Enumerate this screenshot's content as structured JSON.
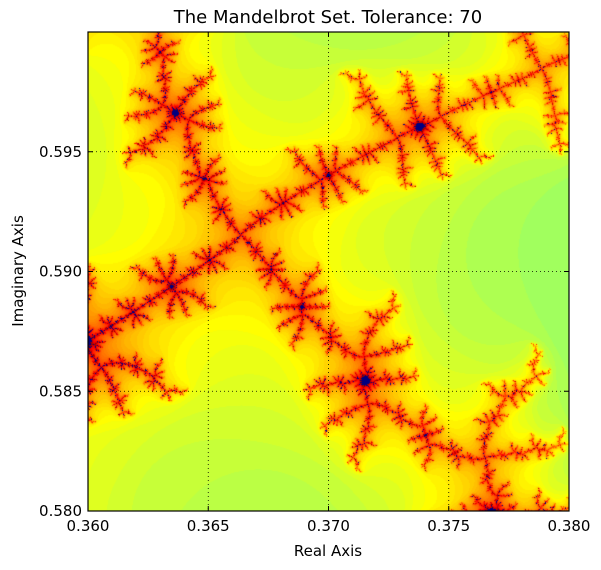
{
  "chart_data": {
    "type": "heatmap",
    "title": "The Mandelbrot Set. Tolerance: 70",
    "xlabel": "Real Axis",
    "ylabel": "Imaginary Axis",
    "xlim": [
      0.36,
      0.38
    ],
    "ylim": [
      0.58,
      0.6
    ],
    "x_ticks": [
      0.36,
      0.365,
      0.37,
      0.375,
      0.38
    ],
    "x_tick_labels": [
      "0.360",
      "0.365",
      "0.370",
      "0.375",
      "0.380"
    ],
    "y_ticks": [
      0.58,
      0.585,
      0.59,
      0.595
    ],
    "y_tick_labels": [
      "0.580",
      "0.585",
      "0.590",
      "0.595"
    ],
    "grid": true,
    "grid_style": "dotted",
    "colormap": "jet",
    "tolerance": 70,
    "colors": {
      "background_dark": "#0a78ff",
      "background_light": "#22ffe0",
      "filament_edge": "#ffe000",
      "filament_core": "#ff1a00",
      "set_interior": "#00007f"
    }
  }
}
